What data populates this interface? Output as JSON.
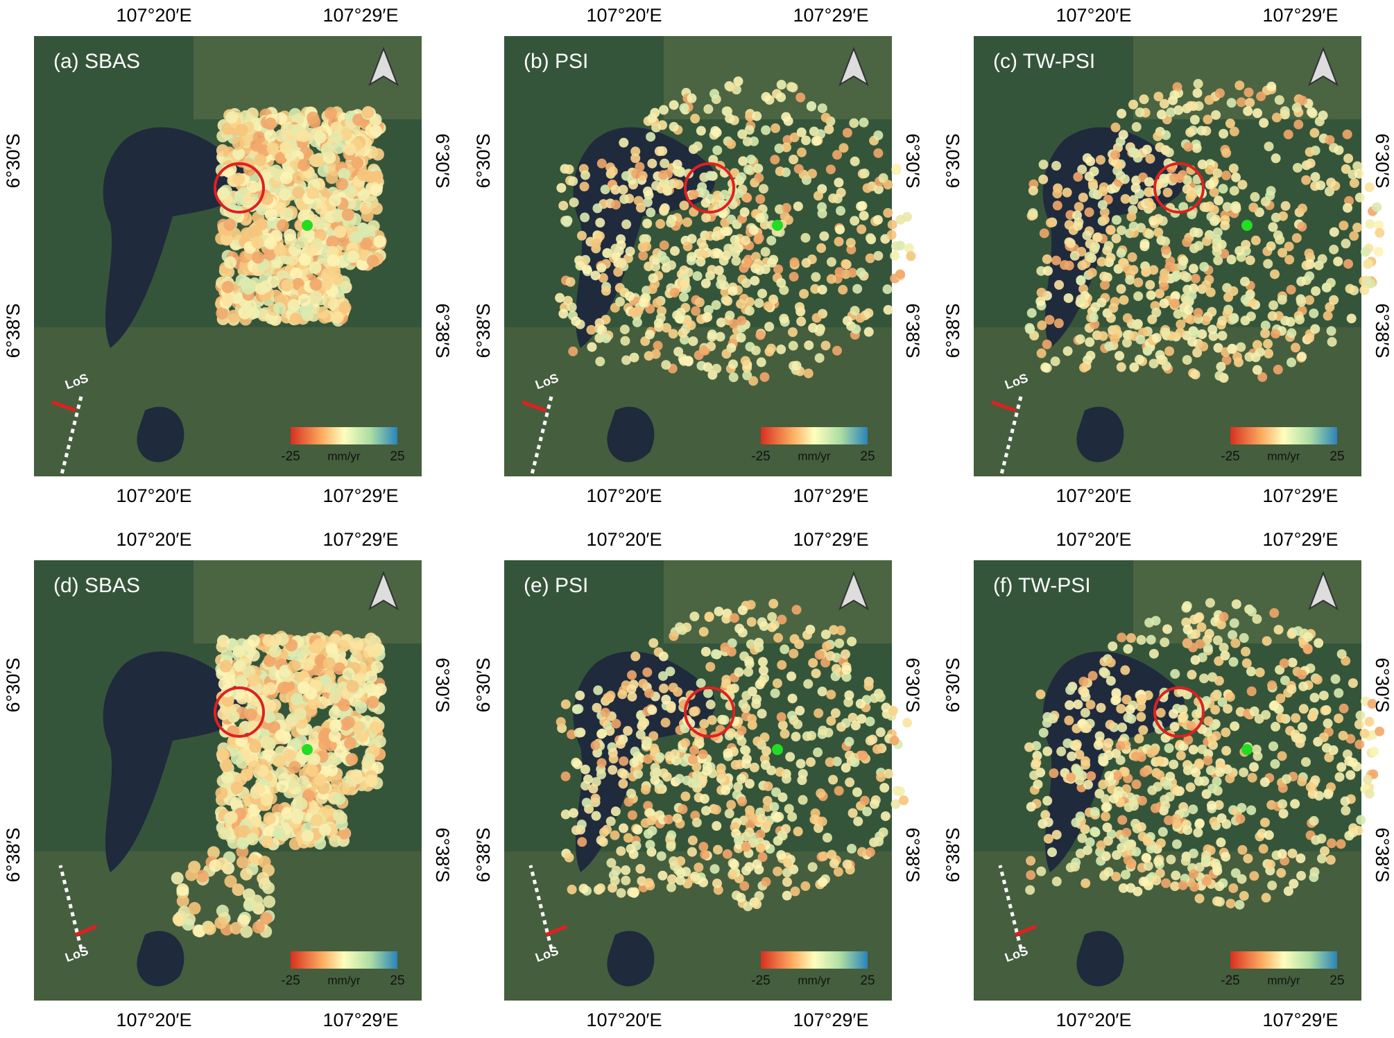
{
  "figure": {
    "panels": [
      {
        "label": "(a) SBAS"
      },
      {
        "label": "(b) PSI"
      },
      {
        "label": "(c) TW-PSI"
      },
      {
        "label": "(d) SBAS"
      },
      {
        "label": "(e) PSI"
      },
      {
        "label": "(f) TW-PSI"
      }
    ],
    "lon_ticks": [
      "107°20′E",
      "107°29′E"
    ],
    "lat_ticks": [
      "6°30′S",
      "6°38′S"
    ],
    "colorbar": {
      "min": -25,
      "max": 25,
      "unit": "mm/yr"
    },
    "los": "LoS"
  }
}
